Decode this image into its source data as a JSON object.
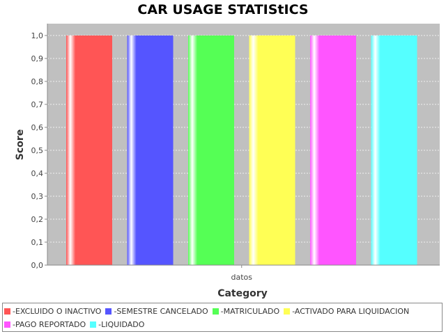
{
  "chart_data": {
    "type": "bar",
    "title": "CAR USAGE STATIStICS",
    "xlabel": "Category",
    "ylabel": "Score",
    "categories": [
      "datos"
    ],
    "ylim": [
      0,
      1.0
    ],
    "yticks": [
      "0,0",
      "0,1",
      "0,2",
      "0,3",
      "0,4",
      "0,5",
      "0,6",
      "0,7",
      "0,8",
      "0,9",
      "1,0"
    ],
    "grid": true,
    "legend_position": "bottom",
    "series": [
      {
        "name": "-EXCLUIDO O INACTIVO",
        "values": [
          1.0
        ],
        "color": "#ff5555"
      },
      {
        "name": "-SEMESTRE CANCELADO",
        "values": [
          1.0
        ],
        "color": "#5555ff"
      },
      {
        "name": "-MATRICULADO",
        "values": [
          1.0
        ],
        "color": "#55ff55"
      },
      {
        "name": "-ACTIVADO PARA LIQUIDACION",
        "values": [
          1.0
        ],
        "color": "#ffff55"
      },
      {
        "name": "-PAGO REPORTADO",
        "values": [
          1.0
        ],
        "color": "#ff55ff"
      },
      {
        "name": "-LIQUIDADO",
        "values": [
          1.0
        ],
        "color": "#55ffff"
      }
    ]
  }
}
